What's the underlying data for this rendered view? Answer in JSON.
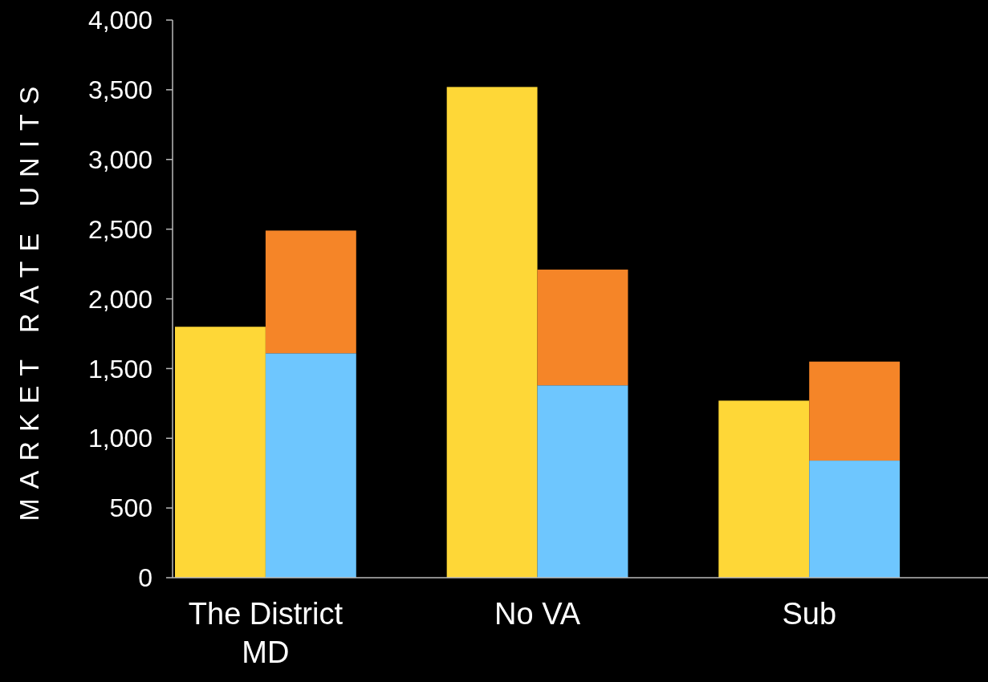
{
  "chart_data": {
    "type": "bar",
    "ylabel": "MARKET RATE UNITS",
    "categories": [
      "The District MD",
      "No VA",
      "Sub"
    ],
    "series": [
      {
        "color": "#fed737",
        "values": [
          1800,
          3520,
          1270
        ],
        "base": [
          0,
          0,
          0
        ]
      },
      {
        "color": "#6ec6fe",
        "values": [
          1610,
          1380,
          840
        ],
        "base": [
          0,
          0,
          0
        ]
      },
      {
        "color": "#f58528",
        "values": [
          880,
          830,
          710
        ],
        "base": [
          1610,
          1380,
          840
        ]
      }
    ],
    "ylim": [
      0,
      4000
    ],
    "yticks": [
      0,
      500,
      {
        "value": 1000,
        "label": "1,000"
      },
      {
        "value": 1500,
        "label": "1,500"
      },
      {
        "value": 2000,
        "label": "2,000"
      },
      {
        "value": 2500,
        "label": "2,500"
      },
      {
        "value": 3000,
        "label": "3,000"
      },
      {
        "value": 3500,
        "label": "3,500"
      },
      {
        "value": 4000,
        "label": "4,000"
      }
    ],
    "grid": false
  }
}
